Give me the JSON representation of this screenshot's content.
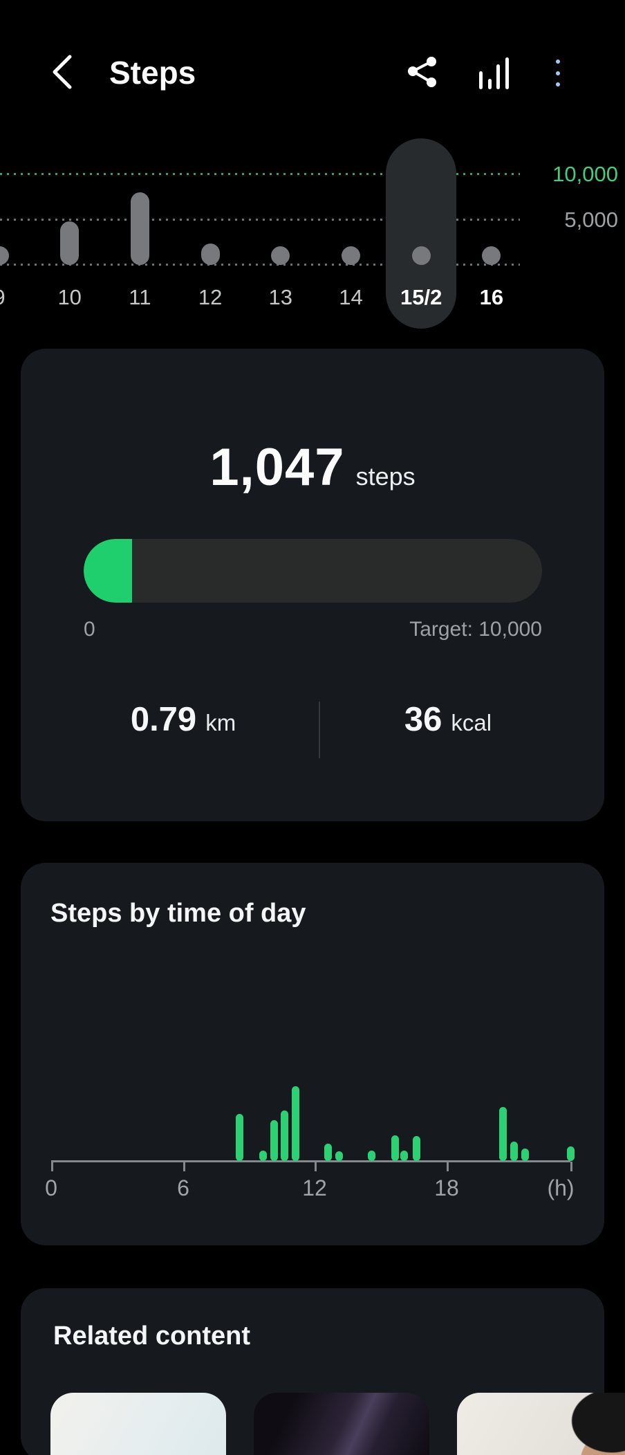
{
  "header": {
    "title": "Steps",
    "icons": {
      "back": "chevron-left",
      "share": "share-nodes",
      "trends": "ascending-bar-chart",
      "more": "vertical-kebab-menu"
    }
  },
  "colors": {
    "background": "#000000",
    "card_background": "#16191d",
    "accent_green": "#1fce6c",
    "hourly_bar_green": "#2cd173",
    "goal_line_green": "#3f9c66",
    "goal_label_green": "#45cd7e",
    "day_bar_gray": "#77797c",
    "selected_pill": "#282b2d",
    "muted_text": "#9fa2a5",
    "menu_dot_blue": "#a9c7ec"
  },
  "day_chart": {
    "y_axis_labels": {
      "goal": "10,000",
      "mid": "5,000"
    }
  },
  "summary_card": {
    "steps_value": "1,047",
    "steps_unit": "steps",
    "progress": {
      "fraction": 0.105,
      "min_label": "0",
      "target_label": "Target: 10,000"
    },
    "distance_value": "0.79",
    "distance_unit": "km",
    "calories_value": "36",
    "calories_unit": "kcal"
  },
  "hourly_card": {
    "title": "Steps by time of day",
    "x_ticks": [
      "0",
      "6",
      "12",
      "18"
    ],
    "x_unit_label": "(h)"
  },
  "related_card": {
    "title": "Related content",
    "thumbnails": [
      {
        "name": "pale-sky-texture-thumbnail",
        "style": "thumb-pale"
      },
      {
        "name": "night-sky-stars-thumbnail",
        "style": "thumb-night"
      },
      {
        "name": "man-in-beanie-portrait-thumbnail",
        "style": "thumb-portrait"
      }
    ]
  },
  "chart_data": [
    {
      "id": "daily_steps_day_selector",
      "type": "bar",
      "categories": [
        "9",
        "10",
        "11",
        "12",
        "13",
        "14",
        "15/2",
        "16"
      ],
      "values": [
        1000,
        4800,
        8000,
        2400,
        1100,
        1100,
        1047,
        1100
      ],
      "values_note": "estimated from bar heights except selected day 15/2 which equals 1,047 shown in summary",
      "selected_index": 6,
      "emphasized_label_indexes": [
        6,
        7
      ],
      "ylim": [
        0,
        10000
      ],
      "gridlines": [
        {
          "value": 10000,
          "label": "10,000",
          "color": "#45cd7e"
        },
        {
          "value": 5000,
          "label": "5,000",
          "color": "#9fa2a5"
        },
        {
          "value": 0,
          "label": "",
          "color": "#9fa2a5"
        }
      ],
      "legend": "none",
      "grid": "dotted horizontal"
    },
    {
      "id": "steps_by_time_of_day",
      "type": "bar",
      "title": "Steps by time of day",
      "xlabel": "(h)",
      "ylabel": "",
      "xlim": [
        0,
        24
      ],
      "x_tick_labels": [
        "0",
        "6",
        "12",
        "18"
      ],
      "y_axis": "not shown; bar heights relative to tallest bar (percent)",
      "bars": [
        {
          "hour": 8.7,
          "height_pct": 63
        },
        {
          "hour": 9.8,
          "height_pct": 14
        },
        {
          "hour": 10.3,
          "height_pct": 55
        },
        {
          "hour": 10.8,
          "height_pct": 68
        },
        {
          "hour": 11.3,
          "height_pct": 100
        },
        {
          "hour": 12.8,
          "height_pct": 23
        },
        {
          "hour": 13.3,
          "height_pct": 13
        },
        {
          "hour": 14.8,
          "height_pct": 14
        },
        {
          "hour": 15.9,
          "height_pct": 34
        },
        {
          "hour": 16.3,
          "height_pct": 14
        },
        {
          "hour": 16.9,
          "height_pct": 33
        },
        {
          "hour": 20.9,
          "height_pct": 72
        },
        {
          "hour": 21.4,
          "height_pct": 26
        },
        {
          "hour": 21.9,
          "height_pct": 17
        },
        {
          "hour": 24.0,
          "height_pct": 19
        }
      ]
    }
  ]
}
